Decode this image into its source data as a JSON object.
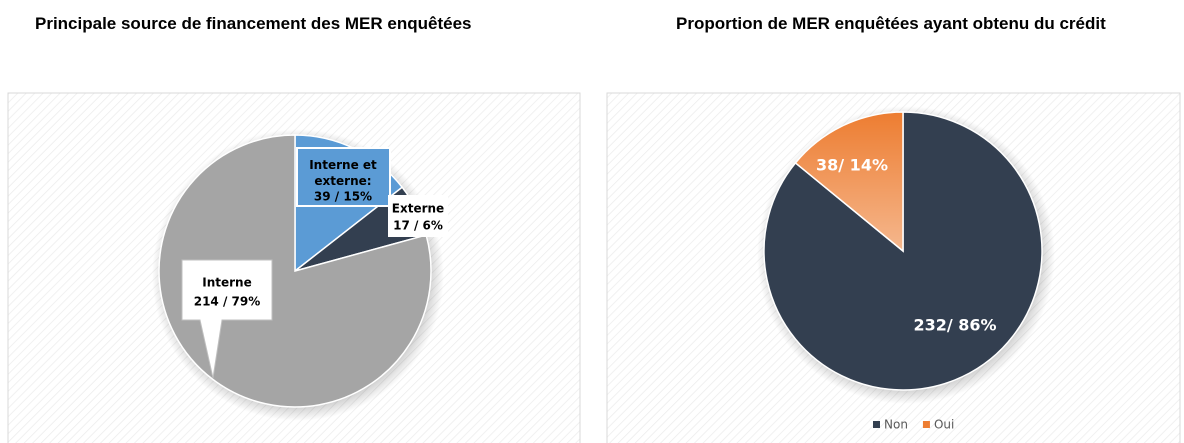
{
  "chart_data": [
    {
      "type": "pie",
      "title": "Principale source de financement des MER enquêtées",
      "categories": [
        "Interne et externe:",
        "Externe",
        "Interne"
      ],
      "values": [
        39,
        17,
        214
      ],
      "value_labels": [
        "39 / 15%",
        "17 / 6%",
        "214 / 79%"
      ],
      "colors": [
        "#5b9bd5",
        "#333f50",
        "#a5a5a5"
      ]
    },
    {
      "type": "pie",
      "title": "Proportion de MER enquêtées ayant obtenu du crédit",
      "categories": [
        "Non",
        "Oui"
      ],
      "series": [
        {
          "name": "Non",
          "color": "#333f50"
        },
        {
          "name": "Oui",
          "color": "#ed7d31"
        }
      ],
      "values": [
        232,
        38
      ],
      "value_labels": [
        "232/ 86%",
        "38/ 14%"
      ],
      "legend": "bottom"
    }
  ]
}
